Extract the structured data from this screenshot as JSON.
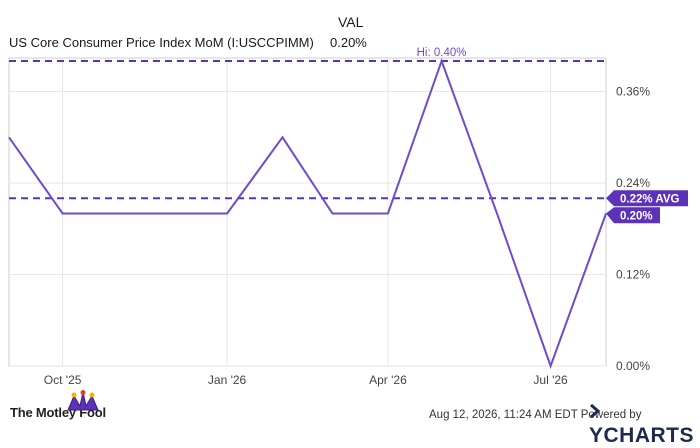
{
  "header": {
    "val_label": "VAL",
    "series_name": "US Core Consumer Price Index MoM (I:USCCPIMM)",
    "series_value": "0.20%"
  },
  "footer": {
    "brand": "The Motley Fool",
    "date_text": "Aug 12, 2026, 11:24 AM EDT Powered by",
    "ycharts": "YCHARTS"
  },
  "colors": {
    "line": "#6f4bd1",
    "badge": "#5b32b8",
    "grid": "#e6e6e6",
    "plot_border": "#cccccc"
  },
  "chart_data": {
    "type": "line",
    "x_ticks": [
      "Oct '25",
      "Jan '26",
      "Apr '26",
      "Jul '26"
    ],
    "y_ticks": [
      "0.00%",
      "0.12%",
      "0.24%",
      "0.36%"
    ],
    "ylim": [
      0,
      0.4
    ],
    "y_tick_values": [
      0.0,
      0.12,
      0.24,
      0.36
    ],
    "x_tick_dates": [
      "2025-10-01",
      "2026-01-01",
      "2026-04-01",
      "2026-07-01"
    ],
    "xlim": [
      "2025-09-01",
      "2026-08-01"
    ],
    "series": [
      {
        "x": [
          "2025-09-01",
          "2025-10-01",
          "2025-11-01",
          "2025-12-01",
          "2026-01-01",
          "2026-02-01",
          "2026-03-01",
          "2026-04-01",
          "2026-05-01",
          "2026-06-01",
          "2026-07-01",
          "2026-08-01"
        ],
        "y": [
          0.3,
          0.2,
          0.2,
          0.2,
          0.2,
          0.3,
          0.2,
          0.2,
          0.4,
          0.2,
          0.0,
          0.2
        ]
      }
    ],
    "reference_lines": [
      {
        "label": "Hi: 0.40%",
        "value": 0.4
      },
      {
        "label": "0.22% AVG",
        "value": 0.22
      }
    ],
    "last_value_label": "0.20%",
    "last_value": 0.2
  }
}
